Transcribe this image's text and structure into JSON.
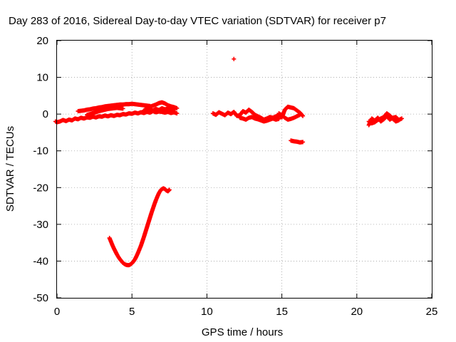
{
  "chart_data": {
    "type": "scatter",
    "title": "Day 283 of 2016, Sidereal Day-to-day VTEC variation (SDTVAR) for receiver p7",
    "xlabel": "GPS time / hours",
    "ylabel": "SDTVAR / TECUs",
    "xlim": [
      0,
      25
    ],
    "ylim": [
      -50,
      20
    ],
    "x_ticks": [
      0,
      5,
      10,
      15,
      20,
      25
    ],
    "y_ticks": [
      -50,
      -40,
      -30,
      -20,
      -10,
      0,
      10,
      20
    ],
    "x_tick_labels": [
      "0",
      "5",
      "10",
      "15",
      "20",
      "25"
    ],
    "y_tick_labels": [
      "-50",
      "-40",
      "-30",
      "-20",
      "-10",
      "0",
      "10",
      "20"
    ],
    "grid": true,
    "legend": "none",
    "marker": "plus",
    "color": "#ff0000",
    "series": [
      {
        "x": [
          -0.1,
          0.0,
          0.2,
          0.4,
          0.6,
          0.8,
          1.0,
          1.2,
          1.4,
          1.6,
          1.8,
          2.0,
          2.2,
          2.4,
          2.6,
          2.8,
          3.0,
          3.2,
          3.4,
          3.6,
          3.8,
          4.0,
          4.2,
          4.4,
          4.6,
          4.8,
          5.0,
          5.2,
          5.4,
          5.6,
          5.8,
          6.0,
          6.2,
          6.4,
          6.6,
          6.8,
          7.0,
          7.2,
          7.4,
          7.6,
          7.8,
          8.0
        ],
        "y": [
          -2.0,
          -2.2,
          -2.0,
          -1.6,
          -1.9,
          -1.5,
          -1.7,
          -1.2,
          -1.4,
          -1.0,
          -1.2,
          -0.9,
          -1.0,
          -0.7,
          -0.9,
          -0.6,
          -0.7,
          -0.4,
          -0.6,
          -0.3,
          -0.5,
          -0.2,
          -0.3,
          0.0,
          -0.1,
          0.2,
          0.1,
          0.4,
          0.2,
          0.5,
          0.3,
          0.6,
          0.4,
          0.8,
          0.5,
          0.7,
          0.6,
          0.4,
          0.6,
          0.3,
          0.5,
          0.2
        ]
      },
      {
        "x": [
          1.4,
          1.6,
          1.8,
          2.0,
          2.2,
          2.4,
          2.6,
          2.8,
          3.0,
          3.2,
          3.4,
          3.6,
          3.8,
          4.0,
          4.2,
          4.4,
          4.6,
          4.8,
          5.0,
          5.2,
          5.4,
          5.6,
          5.8,
          6.0,
          6.2
        ],
        "y": [
          0.8,
          0.9,
          1.0,
          1.2,
          1.3,
          1.5,
          1.6,
          1.8,
          1.9,
          2.1,
          2.2,
          2.3,
          2.4,
          2.5,
          2.6,
          2.6,
          2.7,
          2.7,
          2.8,
          2.7,
          2.6,
          2.5,
          2.4,
          2.3,
          2.2
        ]
      },
      {
        "x": [
          2.0,
          2.2,
          2.4,
          2.6,
          2.8,
          3.0,
          3.2,
          3.4,
          3.6,
          3.8,
          4.0,
          4.2,
          4.4
        ],
        "y": [
          -0.2,
          0.0,
          0.3,
          0.5,
          0.8,
          1.0,
          1.2,
          1.4,
          1.5,
          1.6,
          1.7,
          1.6,
          1.5
        ]
      },
      {
        "x": [
          5.8,
          6.0,
          6.2,
          6.4,
          6.6,
          6.8,
          7.0,
          7.2,
          7.4,
          7.6,
          7.8,
          8.0
        ],
        "y": [
          1.0,
          1.5,
          2.0,
          2.3,
          2.6,
          3.0,
          3.2,
          2.9,
          2.4,
          2.1,
          1.9,
          1.6
        ]
      },
      {
        "x": [
          6.0,
          6.2,
          6.4,
          6.6,
          6.8,
          7.0,
          7.2,
          7.4,
          7.6,
          7.8
        ],
        "y": [
          0.8,
          1.2,
          1.0,
          1.4,
          1.1,
          1.6,
          1.3,
          1.5,
          1.0,
          1.2
        ]
      },
      {
        "x": [
          3.5,
          3.6,
          3.7,
          3.8,
          3.9,
          4.0,
          4.1,
          4.2,
          4.3,
          4.4,
          4.5,
          4.6,
          4.7,
          4.8,
          4.9,
          5.0,
          5.1,
          5.2,
          5.3,
          5.4,
          5.5,
          5.6,
          5.7,
          5.8,
          5.9,
          6.0,
          6.1,
          6.2,
          6.3,
          6.4,
          6.5,
          6.6,
          6.7,
          6.8,
          6.9,
          7.0,
          7.1,
          7.2,
          7.3,
          7.4,
          7.5
        ],
        "y": [
          -33.7,
          -34.7,
          -35.7,
          -36.6,
          -37.4,
          -38.2,
          -38.9,
          -39.5,
          -40.0,
          -40.5,
          -40.8,
          -41.0,
          -41.1,
          -41.1,
          -40.9,
          -40.6,
          -40.1,
          -39.5,
          -38.7,
          -37.8,
          -36.8,
          -35.8,
          -34.6,
          -33.4,
          -32.1,
          -30.8,
          -29.5,
          -28.2,
          -26.9,
          -25.7,
          -24.5,
          -23.4,
          -22.4,
          -21.5,
          -20.8,
          -20.4,
          -20.2,
          -20.4,
          -20.8,
          -21.0,
          -20.6
        ]
      },
      {
        "x": [
          10.4,
          10.6,
          10.8,
          11.0,
          11.2,
          11.4,
          11.6,
          11.8,
          12.0,
          12.2,
          12.4,
          12.6,
          12.8,
          13.0,
          13.2,
          13.4,
          13.6,
          13.8,
          14.0,
          14.2,
          14.4,
          14.6,
          14.8,
          15.0,
          15.2,
          15.4,
          15.6,
          15.8,
          16.0,
          16.2,
          16.4
        ],
        "y": [
          0.2,
          -0.2,
          0.5,
          0.1,
          -0.3,
          0.4,
          0.0,
          0.6,
          -0.5,
          -0.3,
          0.8,
          0.4,
          1.2,
          0.6,
          -0.2,
          -0.6,
          -1.0,
          -1.5,
          -1.2,
          -0.8,
          -1.0,
          -0.6,
          -0.4,
          -0.9,
          1.2,
          2.0,
          1.8,
          1.6,
          1.0,
          0.4,
          -0.5
        ]
      },
      {
        "x": [
          12.2,
          12.4,
          12.6,
          12.8,
          13.0,
          13.2,
          13.4,
          13.6,
          13.8,
          14.0,
          14.2,
          14.4,
          14.6,
          14.8
        ],
        "y": [
          -1.0,
          -1.2,
          -1.5,
          -1.0,
          -0.8,
          -1.2,
          -1.4,
          -1.7,
          -2.0,
          -1.8,
          -1.5,
          -1.2,
          -1.5,
          -1.3
        ]
      },
      {
        "x": [
          14.8,
          15.0,
          15.2,
          15.4,
          15.6,
          15.8,
          16.0,
          16.2
        ],
        "y": [
          0.2,
          -0.3,
          -1.0,
          -1.5,
          -1.3,
          -1.0,
          -0.6,
          -0.2
        ]
      },
      {
        "x": [
          15.6,
          15.8,
          16.0,
          16.2,
          16.4
        ],
        "y": [
          -7.2,
          -7.4,
          -7.5,
          -7.7,
          -7.6
        ]
      },
      {
        "x": [
          11.8
        ],
        "y": [
          15.0
        ]
      },
      {
        "x": [
          20.8,
          21.0,
          21.2,
          21.4,
          21.6,
          21.8,
          22.0,
          22.2,
          22.4,
          22.6,
          22.8,
          23.0
        ],
        "y": [
          -3.0,
          -1.2,
          -1.8,
          -1.0,
          -2.0,
          -1.4,
          -0.5,
          -1.5,
          -1.0,
          -0.8,
          -1.6,
          -1.2
        ]
      },
      {
        "x": [
          20.8,
          21.0,
          21.2,
          21.4,
          21.6,
          21.8,
          22.0,
          22.2,
          22.4,
          22.6,
          22.8
        ],
        "y": [
          -2.0,
          -2.5,
          -2.2,
          -1.6,
          -1.2,
          -0.8,
          0.2,
          -0.4,
          -1.3,
          -2.0,
          -1.7
        ]
      }
    ]
  }
}
